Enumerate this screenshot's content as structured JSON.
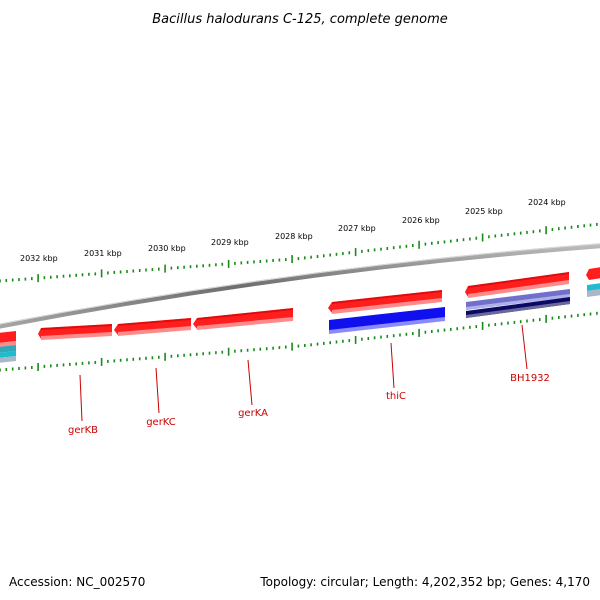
{
  "title": "Bacillus halodurans C-125, complete genome",
  "footer": {
    "accession": "Accession: NC_002570",
    "topology": "Topology: circular; Length: 4,202,352 bp; Genes: 4,170"
  },
  "kbp_labels": [
    "2032 kbp",
    "2031 kbp",
    "2030 kbp",
    "2029 kbp",
    "2028 kbp",
    "2027 kbp",
    "2026 kbp",
    "2025 kbp",
    "2024 kbp"
  ],
  "gene_labels": [
    "gerKB",
    "gerKC",
    "gerKA",
    "thiC",
    "BH1932"
  ],
  "colors": {
    "backbone": "#7a7a7a",
    "forward_gene": "#ff2020",
    "thiC_cog": "#1010ee",
    "bh1932_cog_light": "#7070cc",
    "bh1932_cog_dark": "#0a0a66",
    "partial_cog_cyan": "#20bbcc",
    "tick": "#1a8a1a",
    "label": "#cc0000"
  }
}
